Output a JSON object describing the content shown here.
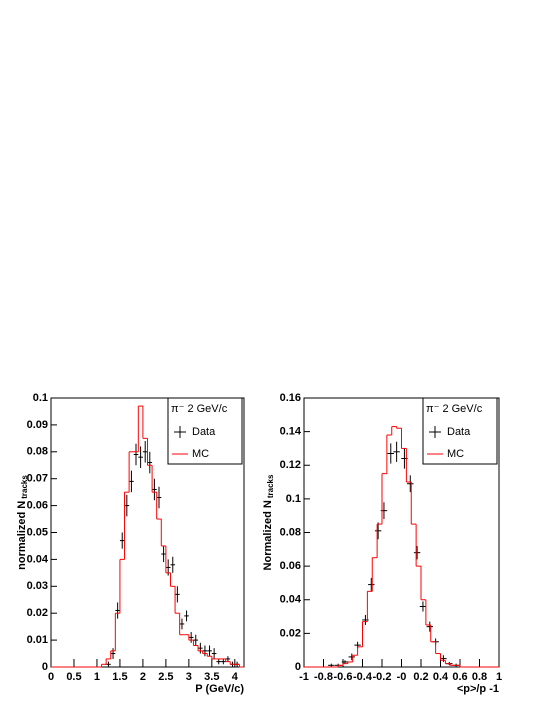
{
  "chart_data": [
    {
      "type": "histogram",
      "xlabel": "P (GeV/c)",
      "ylabel": "normalized N",
      "ylabel_sub": "tracks",
      "legend_title": "π⁻ 2 GeV/c",
      "xlim": [
        0,
        4.2
      ],
      "ylim": [
        0,
        0.1
      ],
      "xticks": [
        0,
        0.5,
        1,
        1.5,
        2,
        2.5,
        3,
        3.5,
        4
      ],
      "yticks": [
        0,
        0.01,
        0.02,
        0.03,
        0.04,
        0.05,
        0.06,
        0.07,
        0.08,
        0.09,
        0.1
      ],
      "bins": [
        0,
        0.1,
        0.2,
        0.3,
        0.4,
        0.5,
        0.6,
        0.7,
        0.8,
        0.9,
        1,
        1.1,
        1.2,
        1.3,
        1.4,
        1.5,
        1.6,
        1.7,
        1.8,
        1.9,
        2,
        2.1,
        2.2,
        2.3,
        2.4,
        2.5,
        2.6,
        2.7,
        2.8,
        2.9,
        3,
        3.1,
        3.2,
        3.3,
        3.4,
        3.5,
        3.6,
        3.7,
        3.8,
        3.9,
        4,
        4.1,
        4.2
      ],
      "series": [
        {
          "name": "Data",
          "color": "#000000",
          "xerror": 0.05,
          "x": [
            1.25,
            1.35,
            1.45,
            1.55,
            1.65,
            1.75,
            1.85,
            1.95,
            2.05,
            2.15,
            2.25,
            2.35,
            2.45,
            2.55,
            2.65,
            2.75,
            2.85,
            2.95,
            3.05,
            3.15,
            3.25,
            3.35,
            3.45,
            3.55,
            3.65,
            3.75,
            3.85,
            3.95,
            4.05
          ],
          "values": [
            0.001,
            0.005,
            0.021,
            0.047,
            0.06,
            0.069,
            0.079,
            0.078,
            0.08,
            0.076,
            0.066,
            0.063,
            0.042,
            0.037,
            0.038,
            0.027,
            0.016,
            0.019,
            0.011,
            0.01,
            0.007,
            0.006,
            0.006,
            0.005,
            0.002,
            0.002,
            0.003,
            0.001,
            0.001
          ],
          "errors": [
            0.001,
            0.002,
            0.003,
            0.003,
            0.004,
            0.004,
            0.004,
            0.004,
            0.004,
            0.004,
            0.004,
            0.004,
            0.003,
            0.003,
            0.003,
            0.003,
            0.002,
            0.002,
            0.002,
            0.002,
            0.002,
            0.002,
            0.002,
            0.002,
            0.001,
            0.001,
            0.001,
            0.001,
            0.001
          ]
        },
        {
          "name": "MC",
          "color": "#ff0000",
          "values": [
            0,
            0,
            0,
            0,
            0,
            0,
            0,
            0,
            0,
            0,
            0,
            0.001,
            0.003,
            0.006,
            0.02,
            0.04,
            0.065,
            0.08,
            0.08,
            0.097,
            0.085,
            0.075,
            0.065,
            0.055,
            0.045,
            0.035,
            0.03,
            0.02,
            0.012,
            0.012,
            0.01,
            0.008,
            0.006,
            0.005,
            0.004,
            0.003,
            0.003,
            0.003,
            0.002,
            0.001,
            0.001,
            0
          ]
        }
      ]
    },
    {
      "type": "histogram",
      "xlabel": "<p>/p -1",
      "ylabel": "Normalized N",
      "ylabel_sub": "tracks",
      "legend_title": "π⁻ 2 GeV/c",
      "xlim": [
        -1,
        1
      ],
      "ylim": [
        0,
        0.16
      ],
      "xticks": [
        -1,
        -0.8,
        -0.6,
        -0.4,
        -0.2,
        {
          "value": 0,
          "label": "-0"
        },
        0.2,
        0.4,
        0.6,
        0.8,
        1
      ],
      "yticks": [
        0,
        0.02,
        0.04,
        0.06,
        0.08,
        0.1,
        0.12,
        0.14,
        0.16
      ],
      "bins": [
        -1,
        -0.95,
        -0.9,
        -0.85,
        -0.8,
        -0.75,
        -0.7,
        -0.65,
        -0.6,
        -0.55,
        -0.5,
        -0.45,
        -0.4,
        -0.35,
        -0.3,
        -0.25,
        -0.2,
        -0.15,
        -0.1,
        -0.05,
        0,
        0.05,
        0.1,
        0.15,
        0.2,
        0.25,
        0.3,
        0.35,
        0.4,
        0.45,
        0.5,
        0.55,
        0.6,
        0.65,
        0.7,
        0.75,
        0.8,
        0.85,
        0.9,
        0.95,
        1
      ],
      "series": [
        {
          "name": "Data",
          "color": "#000000",
          "xerror": 0.033,
          "x": [
            -0.72,
            -0.65,
            -0.58,
            -0.51,
            -0.45,
            -0.37,
            -0.31,
            -0.24,
            -0.18,
            -0.11,
            -0.05,
            0.03,
            0.09,
            0.16,
            0.22,
            0.29,
            0.35,
            0.43,
            0.49,
            0.56
          ],
          "values": [
            0.001,
            0.001,
            0.003,
            0.006,
            0.013,
            0.028,
            0.049,
            0.081,
            0.093,
            0.127,
            0.128,
            0.124,
            0.109,
            0.068,
            0.036,
            0.024,
            0.015,
            0.005,
            0.002,
            0.001
          ],
          "errors": [
            0.001,
            0.001,
            0.001,
            0.002,
            0.002,
            0.003,
            0.004,
            0.005,
            0.005,
            0.006,
            0.006,
            0.006,
            0.005,
            0.004,
            0.003,
            0.003,
            0.002,
            0.002,
            0.001,
            0.001
          ]
        },
        {
          "name": "MC",
          "color": "#ff0000",
          "values": [
            0,
            0,
            0,
            0,
            0,
            0,
            0,
            0.001,
            0.002,
            0.003,
            0.007,
            0.012,
            0.027,
            0.045,
            0.065,
            0.085,
            0.115,
            0.138,
            0.143,
            0.142,
            0.13,
            0.11,
            0.085,
            0.06,
            0.04,
            0.025,
            0.015,
            0.008,
            0.004,
            0.002,
            0.001,
            0.001,
            0,
            0,
            0,
            0,
            0,
            0,
            0,
            0
          ]
        }
      ]
    }
  ]
}
